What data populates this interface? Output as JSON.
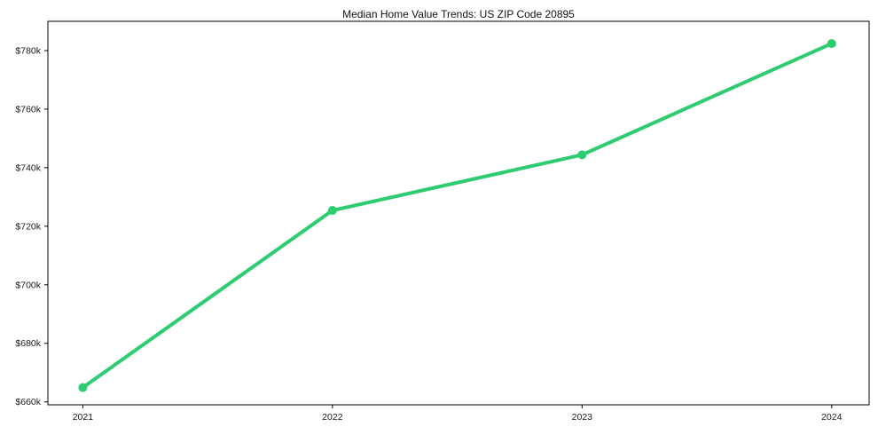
{
  "chart_data": {
    "type": "line",
    "title": "Median Home Value Trends: US ZIP Code 20895",
    "x": [
      2021,
      2022,
      2023,
      2024
    ],
    "x_tick_labels": [
      "2021",
      "2022",
      "2023",
      "2024"
    ],
    "series": [
      {
        "values": [
          664900,
          725400,
          744400,
          782400
        ],
        "color": "#2ecc71",
        "marker": "circle"
      }
    ],
    "y_tick_values": [
      660000,
      680000,
      700000,
      720000,
      740000,
      760000,
      780000
    ],
    "y_tick_labels": [
      "$660k",
      "$680k",
      "$700k",
      "$720k",
      "$740k",
      "$760k",
      "$780k"
    ],
    "xlim": [
      2020.86,
      2024.15
    ],
    "ylim": [
      659000,
      790000
    ],
    "grid": false,
    "legend_position": "none",
    "spine_color": "#000000",
    "background_color": "#ffffff"
  }
}
